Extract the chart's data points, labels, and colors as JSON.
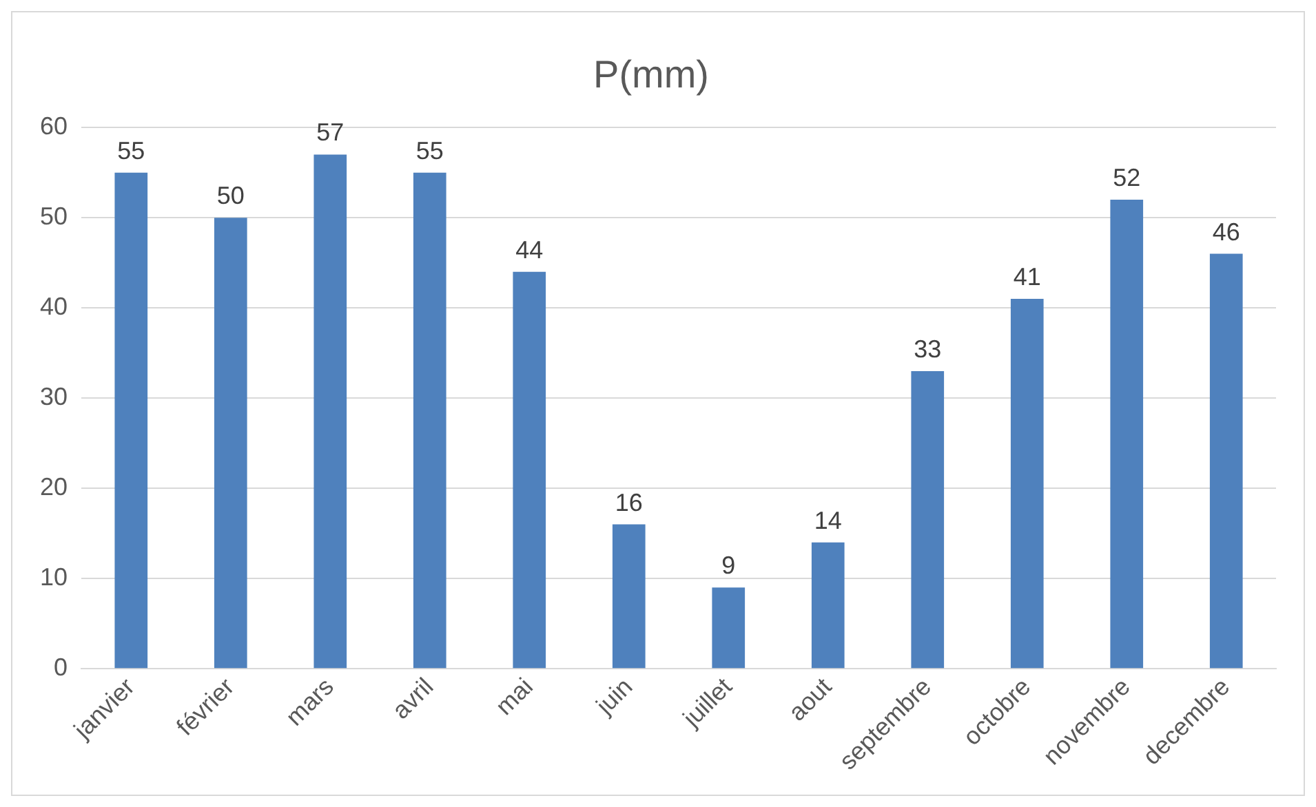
{
  "chart_data": {
    "type": "bar",
    "title": "P(mm)",
    "categories": [
      "janvier",
      "février",
      "mars",
      "avril",
      "mai",
      "juin",
      "juillet",
      "aout",
      "septembre",
      "octobre",
      "novembre",
      "decembre"
    ],
    "values": [
      55,
      50,
      57,
      55,
      44,
      16,
      9,
      14,
      33,
      41,
      52,
      46
    ],
    "color": "#4f81bd",
    "ylim": [
      0,
      60
    ],
    "yticks": [
      0,
      10,
      20,
      30,
      40,
      50,
      60
    ],
    "grid": "y",
    "data_labels": true
  }
}
